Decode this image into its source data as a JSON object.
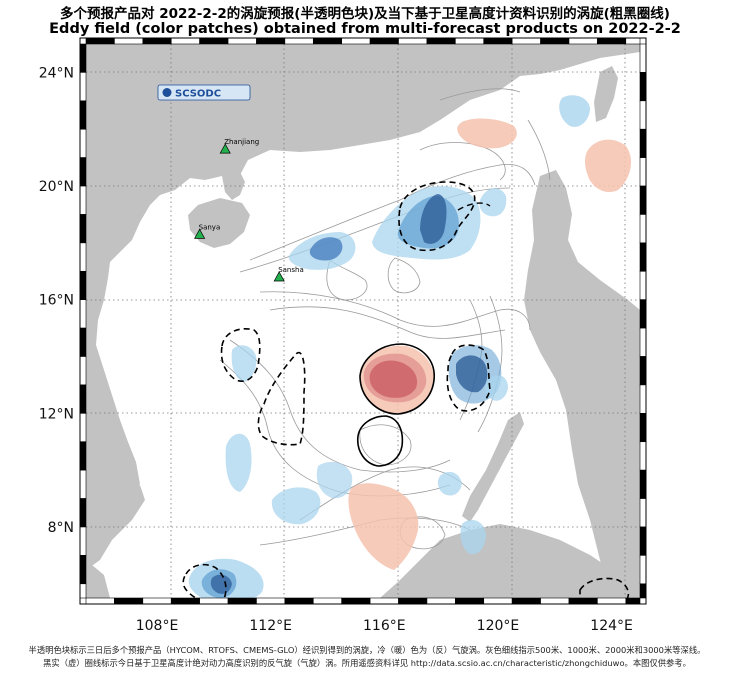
{
  "title_cn": "多个预报产品对 2022-2-2的涡旋预报(半透明色块)及当下基于卫星高度计资料识别的涡旋(粗黑圈线)",
  "title_en": "Eddy field (color patches) obtained from multi-forecast products on 2022-2-2",
  "logo_text": "SCSODC",
  "map": {
    "lon_range": [
      105.5,
      125.0
    ],
    "lat_range": [
      5.5,
      25.0
    ],
    "lon_ticks": [
      {
        "value": 108,
        "label": "108°E"
      },
      {
        "value": 112,
        "label": "112°E"
      },
      {
        "value": 116,
        "label": "116°E"
      },
      {
        "value": 120,
        "label": "120°E"
      },
      {
        "value": 124,
        "label": "124°E"
      }
    ],
    "lat_ticks": [
      {
        "value": 8,
        "label": "8°N"
      },
      {
        "value": 12,
        "label": "12°N"
      },
      {
        "value": 16,
        "label": "16°N"
      },
      {
        "value": 20,
        "label": "20°N"
      },
      {
        "value": 24,
        "label": "24°N"
      }
    ],
    "cities": [
      {
        "name": "Zhanjiang",
        "lon": 110.4,
        "lat": 21.3
      },
      {
        "name": "Sanya",
        "lon": 109.5,
        "lat": 18.3
      },
      {
        "name": "Sansha",
        "lon": 112.3,
        "lat": 16.8
      }
    ],
    "colors": {
      "land": "#c2c2c2",
      "ocean": "#ffffff",
      "cyclonic_light": "#a9d4ee",
      "cyclonic_mid": "#6aa6d6",
      "cyclonic_dark": "#2f5f99",
      "anticyclonic_light": "#f5c2ae",
      "anticyclonic_mid": "#e39a95",
      "anticyclonic_dark": "#c85a63"
    }
  },
  "footer": {
    "line1": "半透明色块标示三日后多个预报产品（HYCOM、RTOFS、CMEMS-GLO）经识别得到的涡旋，冷（暖）色为（反）气旋涡。灰色细线指示500米、1000米、2000米和3000米等深线。",
    "line2": "黑实（虚）圈线标示今日基于卫星高度计绝对动力高度识别的反气旋（气旋）涡。所用遥感资料详见 http://data.scsio.ac.cn/characteristic/zhongchiduwo。本图仅供参考。"
  }
}
